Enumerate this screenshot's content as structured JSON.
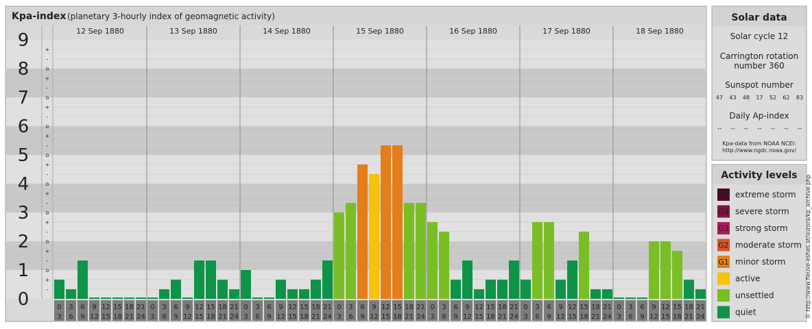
{
  "header": {
    "title": "Kpa-index",
    "subtitle": "(planetary 3-hourly index of geomagnetic activity)"
  },
  "side_label": "© http://www.fleuve-eshes.at/aurora/kp_archive.php",
  "colors": {
    "quiet": "#0e9448",
    "unsettled": "#7abe25",
    "active": "#f6c20a",
    "minor": "#e57e18",
    "moderate": "#d8552a",
    "strong": "#b1185c",
    "severe": "#7d1540",
    "extreme": "#4b0a25",
    "band_dark": "#c8c8c8",
    "band_light": "#e0e0e0",
    "panel": "#dcdcdc"
  },
  "solar": {
    "title": "Solar data",
    "cycle": "Solar cycle 12",
    "carrington_1": "Carrington rotation",
    "carrington_2": "number 360",
    "sunspot_title": "Sunspot number",
    "sunspots": [
      "47",
      "43",
      "48",
      "17",
      "52",
      "62",
      "83"
    ],
    "ap_title": "Daily Ap-index",
    "ap": [
      "--",
      "--",
      "--",
      "--",
      "--",
      "--",
      "--"
    ],
    "source_1": "Kpa-data from NOAA NCEI:",
    "source_2": "http://www.ngdc.noaa.gov/"
  },
  "levels": {
    "title": "Activity levels",
    "items": [
      {
        "badge": "G5",
        "label": "extreme storm",
        "color": "#4b0a25"
      },
      {
        "badge": "G4",
        "label": "severe storm",
        "color": "#7d1540"
      },
      {
        "badge": "G3",
        "label": "strong storm",
        "color": "#b1185c"
      },
      {
        "badge": "G2",
        "label": "moderate storm",
        "color": "#d8552a"
      },
      {
        "badge": "G1",
        "label": "minor storm",
        "color": "#e57e18"
      },
      {
        "badge": "",
        "label": "active",
        "color": "#f6c20a"
      },
      {
        "badge": "",
        "label": "unsettled",
        "color": "#7abe25"
      },
      {
        "badge": "",
        "label": "quiet",
        "color": "#0e9448"
      }
    ]
  },
  "chart_data": {
    "type": "bar",
    "ylim": [
      0,
      9
    ],
    "y_ticks": [
      "0",
      "1",
      "2",
      "3",
      "4",
      "5",
      "6",
      "7",
      "8",
      "9"
    ],
    "sub_ticks": [
      "-",
      "+",
      "o"
    ],
    "slot_top": [
      "0",
      "3",
      "6",
      "9",
      "12",
      "15",
      "18",
      "21"
    ],
    "slot_bottom": [
      "3",
      "6",
      "9",
      "12",
      "15",
      "18",
      "21",
      "24"
    ],
    "days": [
      {
        "date": "12 Sep 1880",
        "values": [
          0.667,
          0.333,
          1.333,
          0,
          0,
          0,
          0,
          0
        ]
      },
      {
        "date": "13 Sep 1880",
        "values": [
          0,
          0.333,
          0.667,
          0,
          1.333,
          1.333,
          0.667,
          0.333
        ]
      },
      {
        "date": "14 Sep 1880",
        "values": [
          1.0,
          0,
          0,
          0.667,
          0.333,
          0.333,
          0.667,
          1.333
        ]
      },
      {
        "date": "15 Sep 1880",
        "values": [
          3.0,
          3.333,
          4.667,
          4.333,
          5.333,
          5.333,
          3.333,
          3.333
        ]
      },
      {
        "date": "16 Sep 1880",
        "values": [
          2.667,
          2.333,
          0.667,
          1.333,
          0.333,
          0.667,
          0.667,
          1.333
        ]
      },
      {
        "date": "17 Sep 1880",
        "values": [
          0.667,
          2.667,
          2.667,
          0.667,
          1.333,
          2.333,
          0.333,
          0.333
        ]
      },
      {
        "date": "18 Sep 1880",
        "values": [
          0,
          0,
          0,
          2.0,
          2.0,
          1.667,
          0.667,
          0.333
        ]
      }
    ]
  }
}
